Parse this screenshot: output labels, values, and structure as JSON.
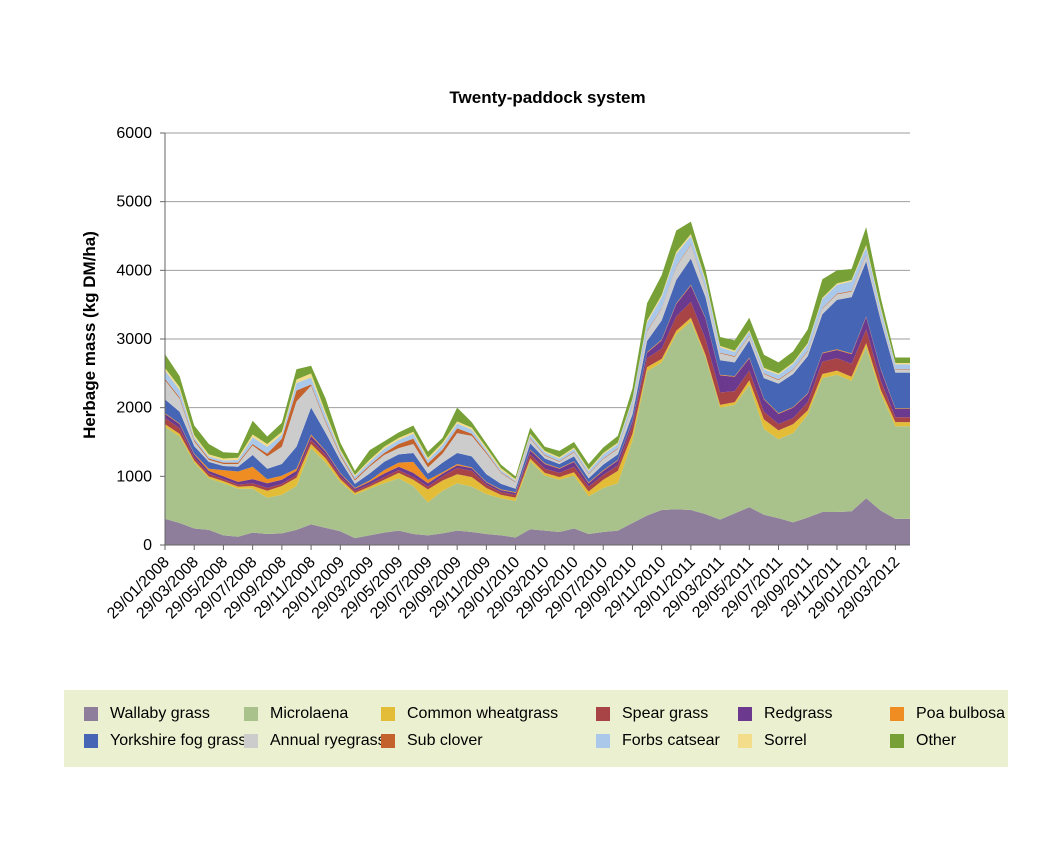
{
  "chart_data": {
    "type": "area",
    "stacked": true,
    "title": "Twenty-paddock system",
    "ylabel": "Herbage mass (kg DM/ha)",
    "xlabel": "",
    "ylim": [
      0,
      6000
    ],
    "yticks": [
      0,
      1000,
      2000,
      3000,
      4000,
      5000,
      6000
    ],
    "grid": "horizontal",
    "legend_position": "bottom",
    "x": [
      "29/01/2008",
      "29/02/2008",
      "29/03/2008",
      "29/04/2008",
      "29/05/2008",
      "29/06/2008",
      "29/07/2008",
      "29/08/2008",
      "29/09/2008",
      "29/10/2008",
      "29/11/2008",
      "29/12/2008",
      "29/01/2009",
      "29/02/2009",
      "29/03/2009",
      "29/04/2009",
      "29/05/2009",
      "29/06/2009",
      "29/07/2009",
      "29/08/2009",
      "29/09/2009",
      "29/10/2009",
      "29/11/2009",
      "29/12/2009",
      "29/01/2010",
      "29/02/2010",
      "29/03/2010",
      "29/04/2010",
      "29/05/2010",
      "29/06/2010",
      "29/07/2010",
      "29/08/2010",
      "29/09/2010",
      "29/10/2010",
      "29/11/2010",
      "29/12/2010",
      "29/01/2011",
      "29/02/2011",
      "29/03/2011",
      "29/04/2011",
      "29/05/2011",
      "29/06/2011",
      "29/07/2011",
      "29/08/2011",
      "29/09/2011",
      "29/10/2011",
      "29/11/2011",
      "29/12/2011",
      "29/01/2012",
      "29/02/2012",
      "29/03/2012",
      "29/04/2012"
    ],
    "xtick_labels": [
      "29/01/2008",
      "29/03/2008",
      "29/05/2008",
      "29/07/2008",
      "29/09/2008",
      "29/11/2008",
      "29/01/2009",
      "29/03/2009",
      "29/05/2009",
      "29/07/2009",
      "29/09/2009",
      "29/11/2009",
      "29/01/2010",
      "29/03/2010",
      "29/05/2010",
      "29/07/2010",
      "29/09/2010",
      "29/11/2010",
      "29/01/2011",
      "29/03/2011",
      "29/05/2011",
      "29/07/2011",
      "29/09/2011",
      "29/11/2011",
      "29/01/2012",
      "29/03/2012"
    ],
    "series": [
      {
        "name": "Wallaby grass",
        "color": "#8e7d9b",
        "values": [
          380,
          320,
          240,
          220,
          140,
          120,
          180,
          160,
          170,
          220,
          300,
          250,
          200,
          100,
          140,
          180,
          210,
          160,
          140,
          170,
          210,
          190,
          160,
          140,
          110,
          230,
          210,
          190,
          240,
          160,
          190,
          210,
          320,
          430,
          510,
          520,
          510,
          450,
          370,
          460,
          550,
          440,
          390,
          330,
          400,
          480,
          480,
          490,
          680,
          500,
          380,
          380
        ]
      },
      {
        "name": "Microlaena",
        "color": "#a9c28b",
        "values": [
          1340,
          1260,
          960,
          750,
          760,
          700,
          640,
          530,
          560,
          640,
          1110,
          950,
          720,
          630,
          680,
          720,
          760,
          700,
          480,
          620,
          690,
          660,
          580,
          540,
          530,
          990,
          800,
          760,
          770,
          550,
          640,
          690,
          1200,
          2100,
          2150,
          2550,
          2750,
          2280,
          1630,
          1580,
          1780,
          1250,
          1150,
          1300,
          1500,
          1950,
          2000,
          1900,
          2200,
          1700,
          1350,
          1350
        ]
      },
      {
        "name": "Common wheatgrass",
        "color": "#e3bd38",
        "values": [
          40,
          40,
          30,
          30,
          30,
          30,
          40,
          100,
          130,
          120,
          60,
          60,
          40,
          30,
          30,
          50,
          80,
          90,
          190,
          150,
          130,
          140,
          90,
          50,
          50,
          40,
          40,
          40,
          50,
          70,
          120,
          180,
          100,
          60,
          50,
          50,
          50,
          40,
          40,
          40,
          70,
          140,
          130,
          130,
          60,
          60,
          60,
          60,
          60,
          60,
          60,
          60
        ]
      },
      {
        "name": "Spear grass",
        "color": "#a94446",
        "values": [
          90,
          80,
          40,
          40,
          30,
          30,
          40,
          40,
          30,
          40,
          60,
          50,
          40,
          30,
          30,
          40,
          40,
          40,
          40,
          60,
          90,
          90,
          50,
          40,
          40,
          60,
          60,
          60,
          80,
          70,
          70,
          80,
          120,
          130,
          150,
          210,
          230,
          230,
          180,
          160,
          140,
          110,
          90,
          90,
          120,
          180,
          180,
          190,
          200,
          130,
          70,
          70
        ]
      },
      {
        "name": "Redgrass",
        "color": "#6b3a8e",
        "values": [
          60,
          60,
          50,
          40,
          40,
          40,
          60,
          70,
          60,
          60,
          60,
          50,
          40,
          30,
          40,
          50,
          50,
          60,
          50,
          40,
          40,
          40,
          30,
          30,
          30,
          60,
          70,
          60,
          70,
          50,
          60,
          70,
          60,
          80,
          120,
          180,
          240,
          300,
          250,
          210,
          180,
          180,
          150,
          150,
          120,
          120,
          120,
          140,
          180,
          160,
          120,
          120
        ]
      },
      {
        "name": "Poa bulbosa",
        "color": "#ef8c22",
        "values": [
          10,
          10,
          10,
          30,
          90,
          150,
          180,
          60,
          60,
          30,
          20,
          10,
          10,
          10,
          20,
          50,
          60,
          160,
          50,
          20,
          20,
          10,
          10,
          10,
          10,
          10,
          10,
          10,
          10,
          10,
          10,
          10,
          10,
          10,
          10,
          10,
          10,
          10,
          10,
          10,
          10,
          10,
          10,
          10,
          10,
          10,
          10,
          10,
          10,
          10,
          10,
          10
        ]
      },
      {
        "name": "Yorkshire fog grass",
        "color": "#4665b5",
        "values": [
          200,
          170,
          110,
          100,
          60,
          70,
          170,
          150,
          170,
          320,
          390,
          260,
          180,
          60,
          100,
          120,
          120,
          130,
          90,
          140,
          160,
          160,
          110,
          80,
          50,
          90,
          70,
          60,
          70,
          60,
          80,
          80,
          90,
          160,
          280,
          340,
          380,
          300,
          210,
          200,
          250,
          300,
          430,
          480,
          540,
          560,
          720,
          820,
          800,
          710,
          520,
          520
        ]
      },
      {
        "name": "Annual ryegrass",
        "color": "#cccccc",
        "values": [
          280,
          190,
          70,
          30,
          30,
          40,
          140,
          180,
          250,
          660,
          320,
          150,
          70,
          50,
          100,
          100,
          90,
          130,
          90,
          130,
          290,
          300,
          300,
          160,
          90,
          70,
          40,
          30,
          60,
          60,
          80,
          80,
          120,
          140,
          170,
          190,
          200,
          120,
          100,
          80,
          60,
          60,
          50,
          60,
          70,
          80,
          80,
          80,
          90,
          50,
          40,
          40
        ]
      },
      {
        "name": "Sub clover",
        "color": "#c4622d",
        "values": [
          20,
          20,
          20,
          20,
          20,
          20,
          20,
          40,
          120,
          160,
          20,
          20,
          20,
          20,
          20,
          30,
          60,
          80,
          60,
          60,
          70,
          30,
          20,
          10,
          10,
          10,
          10,
          10,
          10,
          10,
          10,
          10,
          10,
          10,
          10,
          10,
          10,
          10,
          10,
          10,
          10,
          10,
          10,
          10,
          10,
          10,
          10,
          10,
          10,
          10,
          10,
          10
        ]
      },
      {
        "name": "Forbs catsear",
        "color": "#a9c8ea",
        "values": [
          120,
          110,
          40,
          30,
          30,
          40,
          100,
          100,
          60,
          110,
          100,
          90,
          40,
          40,
          50,
          60,
          60,
          70,
          50,
          70,
          70,
          60,
          40,
          30,
          20,
          40,
          40,
          40,
          40,
          40,
          60,
          60,
          80,
          120,
          160,
          180,
          120,
          100,
          80,
          60,
          60,
          60,
          70,
          80,
          90,
          130,
          130,
          140,
          110,
          100,
          70,
          70
        ]
      },
      {
        "name": "Sorrel",
        "color": "#f3dd8a",
        "values": [
          40,
          40,
          30,
          30,
          30,
          30,
          40,
          40,
          40,
          50,
          60,
          40,
          30,
          20,
          30,
          30,
          30,
          30,
          30,
          30,
          30,
          30,
          30,
          30,
          20,
          20,
          20,
          20,
          20,
          20,
          20,
          20,
          20,
          30,
          30,
          30,
          30,
          30,
          20,
          20,
          20,
          20,
          20,
          20,
          20,
          20,
          20,
          20,
          30,
          30,
          20,
          20
        ]
      },
      {
        "name": "Other",
        "color": "#77a137",
        "values": [
          200,
          160,
          140,
          150,
          90,
          70,
          200,
          110,
          130,
          150,
          110,
          200,
          100,
          60,
          140,
          80,
          80,
          90,
          90,
          70,
          200,
          80,
          60,
          50,
          40,
          90,
          60,
          90,
          80,
          80,
          80,
          100,
          150,
          250,
          290,
          310,
          180,
          140,
          130,
          150,
          180,
          190,
          160,
          160,
          200,
          270,
          190,
          160,
          260,
          140,
          80,
          80
        ]
      }
    ]
  }
}
